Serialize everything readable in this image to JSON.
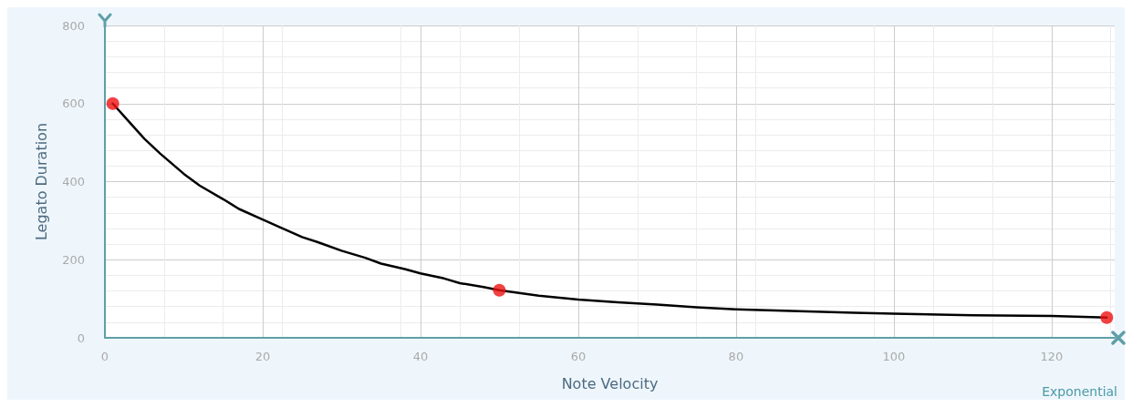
{
  "chart_data": {
    "type": "line",
    "xlabel": "Note Velocity",
    "ylabel": "Legato Duration",
    "annotations": [
      "Exponential"
    ],
    "xlim": [
      0,
      128
    ],
    "xticks": [
      0,
      20,
      40,
      60,
      80,
      100,
      120
    ],
    "ylim": [
      0,
      800
    ],
    "yticks": [
      0,
      200,
      400,
      600,
      800
    ],
    "grid": true,
    "series": [
      {
        "color": "#000000",
        "marker": "none",
        "x": [
          1,
          3,
          5,
          7,
          10,
          12,
          15,
          17,
          20,
          22,
          25,
          27,
          30,
          33,
          35,
          38,
          40,
          43,
          45,
          48,
          50,
          55,
          60,
          65,
          70,
          75,
          80,
          85,
          90,
          95,
          100,
          110,
          120,
          127
        ],
        "values": [
          600,
          555,
          510,
          472,
          420,
          390,
          355,
          330,
          303,
          285,
          258,
          245,
          223,
          205,
          190,
          176,
          165,
          152,
          140,
          130,
          122,
          108,
          98,
          91,
          85,
          78,
          73,
          70,
          67,
          64,
          62,
          58,
          56,
          52
        ]
      },
      {
        "type": "scatter",
        "color": "#ee1111",
        "marker": "circle",
        "x": [
          1,
          50,
          127
        ],
        "values": [
          600,
          122,
          52
        ]
      }
    ]
  }
}
